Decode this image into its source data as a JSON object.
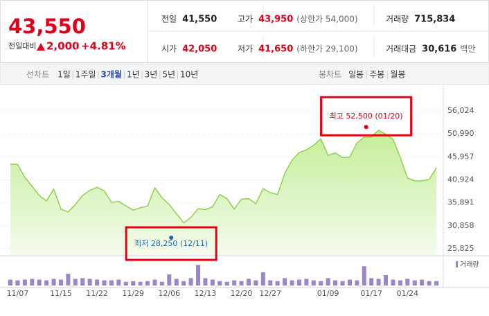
{
  "header": {
    "price": "43,550",
    "change_label": "전일대비",
    "change": "2,000",
    "change_rate": "+4.81%",
    "stats": [
      {
        "label": "전일",
        "value": "41,550",
        "color": "#222"
      },
      {
        "label": "고가",
        "value": "43,950",
        "note": "(상한가 54,000)",
        "color": "#e0001b"
      },
      {
        "label": "거래량",
        "value": "715,834",
        "color": "#222"
      },
      {
        "label": "시가",
        "value": "42,050",
        "color": "#e0001b"
      },
      {
        "label": "저가",
        "value": "41,650",
        "note": "(하한가 29,100)",
        "color": "#e0001b"
      },
      {
        "label": "거래대금",
        "value": "30,616",
        "note": "백만",
        "color": "#222"
      }
    ]
  },
  "tabs": {
    "line_label": "선차트",
    "line": [
      "1일",
      "1주일",
      "3개월",
      "1년",
      "3년",
      "5년",
      "10년"
    ],
    "selected": 2,
    "candle_label": "봉차트",
    "candle": [
      "일봉",
      "주봉",
      "월봉"
    ]
  },
  "chart_data": [
    {
      "type": "area",
      "categories": [
        null,
        "11/07",
        null,
        null,
        null,
        null,
        null,
        "11/15",
        null,
        null,
        null,
        null,
        "11/22",
        null,
        null,
        null,
        null,
        "11/29",
        null,
        null,
        null,
        null,
        "12/06",
        null,
        null,
        null,
        null,
        "12/13",
        null,
        null,
        null,
        null,
        "12/20",
        null,
        null,
        null,
        "12/27",
        null,
        null,
        null,
        null,
        null,
        null,
        null,
        "01/09",
        null,
        null,
        null,
        null,
        null,
        "01/17",
        null,
        null,
        null,
        null,
        "01/24",
        null,
        null,
        null,
        null
      ],
      "series": [
        {
          "color": "#8fd14f",
          "values": [
            44400,
            44300,
            41500,
            39500,
            37500,
            36300,
            38900,
            34500,
            33900,
            35500,
            37500,
            38600,
            39300,
            38500,
            36000,
            36200,
            35200,
            34300,
            34800,
            35200,
            39200,
            37000,
            35500,
            33500,
            31500,
            32700,
            34600,
            34400,
            35000,
            37700,
            36800,
            34500,
            36700,
            36800,
            35700,
            39000,
            38100,
            37700,
            42300,
            45200,
            46900,
            47500,
            48500,
            49900,
            46300,
            46800,
            45800,
            45900,
            49000,
            50300,
            50300,
            51800,
            50900,
            49800,
            45800,
            41300,
            40700,
            40700,
            41000,
            43550
          ]
        }
      ],
      "ylim": [
        24459,
        59059
      ],
      "yticks": [
        {
          "value": 25825,
          "label": "25,825"
        },
        {
          "value": 30858,
          "label": "30,858"
        },
        {
          "value": 35891,
          "label": "35,891"
        },
        {
          "value": 40924,
          "label": "40,924"
        },
        {
          "value": 45957,
          "label": "45,957"
        },
        {
          "value": 50990,
          "label": "50,990"
        },
        {
          "value": 56024,
          "label": "56,024"
        }
      ],
      "grid": true,
      "annotations": [
        {
          "text": "최고 52,500 (01/20)",
          "value": 52500,
          "color": "#d6001c",
          "kind": "max"
        },
        {
          "text": "최저 28,250 (12/11)",
          "value": 28250,
          "color": "#1e64b4",
          "kind": "min"
        }
      ]
    },
    {
      "type": "bar",
      "series": [
        {
          "name": "거래량",
          "color": "#9b86c9",
          "values": [
            960000,
            840000,
            960000,
            1080000,
            960000,
            840000,
            1080000,
            960000,
            1920000,
            1080000,
            1200000,
            1080000,
            960000,
            840000,
            840000,
            960000,
            600000,
            720000,
            600000,
            720000,
            960000,
            600000,
            1800000,
            1080000,
            720000,
            1200000,
            3360000,
            1200000,
            960000,
            720000,
            600000,
            840000,
            720000,
            1080000,
            840000,
            2160000,
            840000,
            720000,
            1200000,
            840000,
            960000,
            1080000,
            840000,
            720000,
            1200000,
            840000,
            720000,
            960000,
            840000,
            3120000,
            1200000,
            1080000,
            1680000,
            960000,
            840000,
            1080000,
            840000,
            960000,
            720000,
            715834
          ]
        }
      ],
      "ylim": [
        0,
        3600000
      ]
    }
  ]
}
